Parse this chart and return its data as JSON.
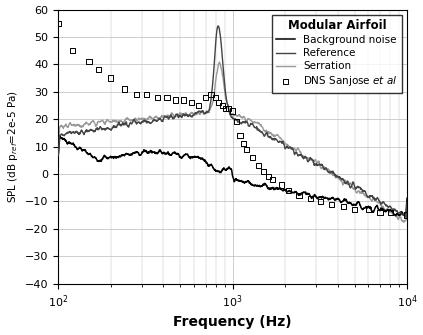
{
  "title": "Modular Airfoil",
  "xlabel": "Frequency (Hz)",
  "ylabel": "SPL (dB p$_\\mathrm{ref}$=2e-5 Pa)",
  "xlim": [
    100,
    10000
  ],
  "ylim": [
    -40,
    60
  ],
  "yticks": [
    -40,
    -30,
    -20,
    -10,
    0,
    10,
    20,
    30,
    40,
    50,
    60
  ],
  "legend_labels": [
    "Background noise",
    "Reference",
    "Serration",
    "DNS Sanjose \\textit{et al}"
  ],
  "color_bg": "#000000",
  "color_ref": "#444444",
  "color_serr": "#999999",
  "background_color": "#ffffff",
  "grid_color": "#bbbbbb"
}
